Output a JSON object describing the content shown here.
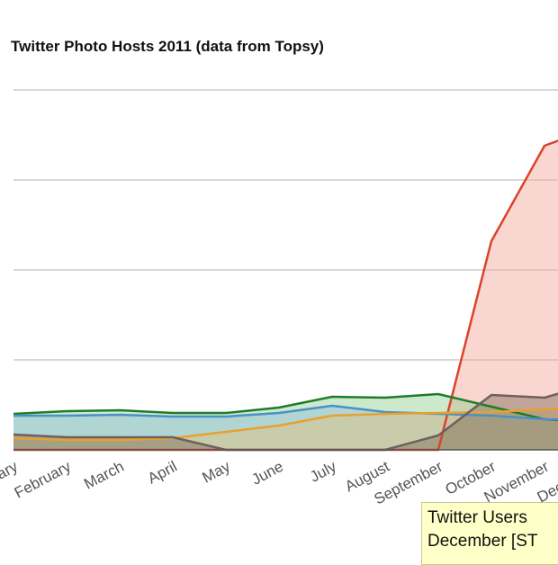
{
  "chart_data": {
    "type": "area",
    "title": "Twitter Photo Hosts 2011 (data from Topsy)",
    "xlabel": "",
    "ylabel": "",
    "categories": [
      "January",
      "February",
      "March",
      "April",
      "May",
      "June",
      "July",
      "August",
      "September",
      "October",
      "November",
      "December"
    ],
    "y_tick_labels_visible": false,
    "ylim": [
      0,
      4
    ],
    "grid": true,
    "stacked": false,
    "series": [
      {
        "color": "#d9442a",
        "fill": "#f2a595",
        "values": [
          0,
          0,
          0,
          0,
          0,
          0,
          0,
          0,
          0,
          2.32,
          3.38,
          3.6
        ]
      },
      {
        "color": "#1e7d2a",
        "fill": "#8fcf8f",
        "values": [
          0.4,
          0.43,
          0.44,
          0.41,
          0.41,
          0.47,
          0.59,
          0.58,
          0.62,
          0.48,
          0.34,
          0.3
        ]
      },
      {
        "color": "#4a90c8",
        "fill": "#8fbcd9",
        "values": [
          0.38,
          0.38,
          0.39,
          0.37,
          0.37,
          0.41,
          0.49,
          0.42,
          0.4,
          0.38,
          0.34,
          0.33
        ]
      },
      {
        "color": "#e8a030",
        "fill": "#e8c27a",
        "values": [
          0.13,
          0.11,
          0.11,
          0.13,
          0.2,
          0.27,
          0.38,
          0.4,
          0.41,
          0.42,
          0.45,
          0.48
        ]
      },
      {
        "color": "#6e6060",
        "fill": "#7a6a55",
        "values": [
          0.17,
          0.14,
          0.14,
          0.14,
          0,
          0,
          0,
          0,
          0.16,
          0.61,
          0.58,
          0.75
        ]
      }
    ],
    "tooltip": {
      "line1": "Twitter Users",
      "line2": "December [ST"
    }
  }
}
